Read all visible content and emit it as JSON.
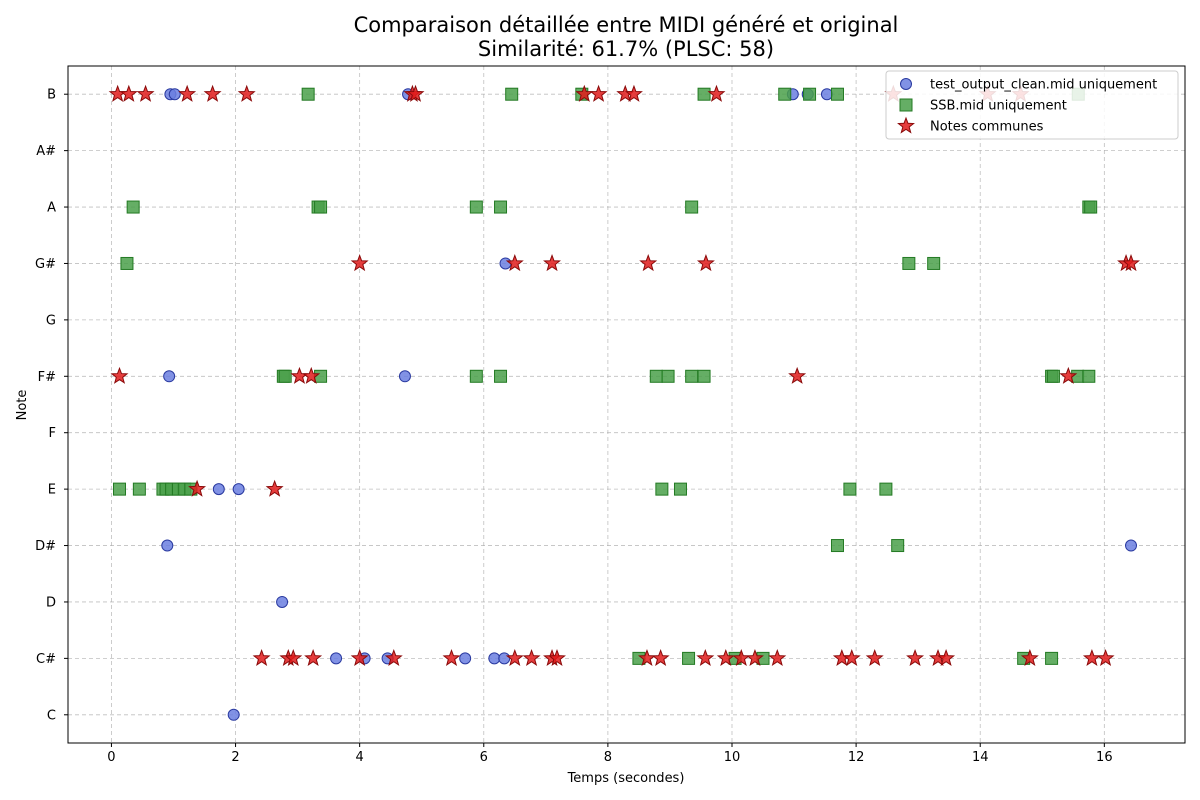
{
  "chart_data": {
    "type": "scatter",
    "title": "Comparaison détaillée entre MIDI généré et original",
    "subtitle": "Similarité: 61.7% (PLSC: 58)",
    "xlabel": "Temps (secondes)",
    "ylabel": "Note",
    "xlim": [
      -0.7,
      17.3
    ],
    "x_ticks": [
      0,
      2,
      4,
      6,
      8,
      10,
      12,
      14,
      16
    ],
    "y_categories": [
      "C",
      "C#",
      "D",
      "D#",
      "E",
      "F",
      "F#",
      "G",
      "G#",
      "A",
      "A#",
      "B"
    ],
    "grid": true,
    "legend_position": "top-right",
    "series": [
      {
        "name": "test_output_clean.mid uniquement",
        "marker": "circle",
        "color": "#6b7fe0",
        "edge_color": "#2a3aa0",
        "points": [
          {
            "x": 0.95,
            "note": "B"
          },
          {
            "x": 1.02,
            "note": "B"
          },
          {
            "x": 4.78,
            "note": "B"
          },
          {
            "x": 10.98,
            "note": "B"
          },
          {
            "x": 11.22,
            "note": "B"
          },
          {
            "x": 11.53,
            "note": "B"
          },
          {
            "x": 6.35,
            "note": "G#"
          },
          {
            "x": 0.93,
            "note": "F#"
          },
          {
            "x": 4.73,
            "note": "F#"
          },
          {
            "x": 1.73,
            "note": "E"
          },
          {
            "x": 2.05,
            "note": "E"
          },
          {
            "x": 0.9,
            "note": "D#"
          },
          {
            "x": 16.43,
            "note": "D#"
          },
          {
            "x": 2.75,
            "note": "D"
          },
          {
            "x": 3.62,
            "note": "C#"
          },
          {
            "x": 4.08,
            "note": "C#"
          },
          {
            "x": 4.45,
            "note": "C#"
          },
          {
            "x": 5.7,
            "note": "C#"
          },
          {
            "x": 6.17,
            "note": "C#"
          },
          {
            "x": 6.33,
            "note": "C#"
          },
          {
            "x": 1.97,
            "note": "C"
          }
        ]
      },
      {
        "name": "SSB.mid uniquement",
        "marker": "square",
        "color": "#4aa04a",
        "edge_color": "#237a23",
        "points": [
          {
            "x": 3.17,
            "note": "B"
          },
          {
            "x": 6.45,
            "note": "B"
          },
          {
            "x": 7.58,
            "note": "B"
          },
          {
            "x": 9.55,
            "note": "B"
          },
          {
            "x": 10.85,
            "note": "B"
          },
          {
            "x": 11.25,
            "note": "B"
          },
          {
            "x": 11.7,
            "note": "B"
          },
          {
            "x": 15.58,
            "note": "B"
          },
          {
            "x": 0.35,
            "note": "A"
          },
          {
            "x": 3.33,
            "note": "A"
          },
          {
            "x": 3.37,
            "note": "A"
          },
          {
            "x": 5.88,
            "note": "A"
          },
          {
            "x": 6.27,
            "note": "A"
          },
          {
            "x": 9.35,
            "note": "A"
          },
          {
            "x": 15.75,
            "note": "A"
          },
          {
            "x": 15.78,
            "note": "A"
          },
          {
            "x": 0.25,
            "note": "G#"
          },
          {
            "x": 12.85,
            "note": "G#"
          },
          {
            "x": 13.25,
            "note": "G#"
          },
          {
            "x": 2.77,
            "note": "F#"
          },
          {
            "x": 2.8,
            "note": "F#"
          },
          {
            "x": 3.37,
            "note": "F#"
          },
          {
            "x": 5.88,
            "note": "F#"
          },
          {
            "x": 6.27,
            "note": "F#"
          },
          {
            "x": 8.78,
            "note": "F#"
          },
          {
            "x": 8.97,
            "note": "F#"
          },
          {
            "x": 9.35,
            "note": "F#"
          },
          {
            "x": 9.55,
            "note": "F#"
          },
          {
            "x": 15.15,
            "note": "F#"
          },
          {
            "x": 15.18,
            "note": "F#"
          },
          {
            "x": 15.57,
            "note": "F#"
          },
          {
            "x": 15.75,
            "note": "F#"
          },
          {
            "x": 0.13,
            "note": "E"
          },
          {
            "x": 0.45,
            "note": "E"
          },
          {
            "x": 0.83,
            "note": "E"
          },
          {
            "x": 0.88,
            "note": "E"
          },
          {
            "x": 0.97,
            "note": "E"
          },
          {
            "x": 1.08,
            "note": "E"
          },
          {
            "x": 1.18,
            "note": "E"
          },
          {
            "x": 1.28,
            "note": "E"
          },
          {
            "x": 8.87,
            "note": "E"
          },
          {
            "x": 9.17,
            "note": "E"
          },
          {
            "x": 11.9,
            "note": "E"
          },
          {
            "x": 12.48,
            "note": "E"
          },
          {
            "x": 11.7,
            "note": "D#"
          },
          {
            "x": 12.67,
            "note": "D#"
          },
          {
            "x": 8.5,
            "note": "C#"
          },
          {
            "x": 9.3,
            "note": "C#"
          },
          {
            "x": 10.05,
            "note": "C#"
          },
          {
            "x": 10.5,
            "note": "C#"
          },
          {
            "x": 14.7,
            "note": "C#"
          },
          {
            "x": 15.15,
            "note": "C#"
          }
        ]
      },
      {
        "name": "Notes communes",
        "marker": "star",
        "color": "#e01b1b",
        "edge_color": "#8a0a0a",
        "points": [
          {
            "x": 0.1,
            "note": "B"
          },
          {
            "x": 0.28,
            "note": "B"
          },
          {
            "x": 0.55,
            "note": "B"
          },
          {
            "x": 1.22,
            "note": "B"
          },
          {
            "x": 1.63,
            "note": "B"
          },
          {
            "x": 2.18,
            "note": "B"
          },
          {
            "x": 4.85,
            "note": "B"
          },
          {
            "x": 4.9,
            "note": "B"
          },
          {
            "x": 7.62,
            "note": "B"
          },
          {
            "x": 7.85,
            "note": "B"
          },
          {
            "x": 8.28,
            "note": "B"
          },
          {
            "x": 8.42,
            "note": "B"
          },
          {
            "x": 9.75,
            "note": "B"
          },
          {
            "x": 12.6,
            "note": "B"
          },
          {
            "x": 14.12,
            "note": "B"
          },
          {
            "x": 14.65,
            "note": "B"
          },
          {
            "x": 4.0,
            "note": "G#"
          },
          {
            "x": 6.5,
            "note": "G#"
          },
          {
            "x": 7.1,
            "note": "G#"
          },
          {
            "x": 8.65,
            "note": "G#"
          },
          {
            "x": 9.58,
            "note": "G#"
          },
          {
            "x": 16.35,
            "note": "G#"
          },
          {
            "x": 16.43,
            "note": "G#"
          },
          {
            "x": 0.13,
            "note": "F#"
          },
          {
            "x": 3.03,
            "note": "F#"
          },
          {
            "x": 3.22,
            "note": "F#"
          },
          {
            "x": 11.05,
            "note": "F#"
          },
          {
            "x": 15.42,
            "note": "F#"
          },
          {
            "x": 1.38,
            "note": "E"
          },
          {
            "x": 2.63,
            "note": "E"
          },
          {
            "x": 2.42,
            "note": "C#"
          },
          {
            "x": 2.85,
            "note": "C#"
          },
          {
            "x": 2.93,
            "note": "C#"
          },
          {
            "x": 3.25,
            "note": "C#"
          },
          {
            "x": 4.0,
            "note": "C#"
          },
          {
            "x": 4.55,
            "note": "C#"
          },
          {
            "x": 5.48,
            "note": "C#"
          },
          {
            "x": 6.5,
            "note": "C#"
          },
          {
            "x": 6.77,
            "note": "C#"
          },
          {
            "x": 7.1,
            "note": "C#"
          },
          {
            "x": 7.18,
            "note": "C#"
          },
          {
            "x": 8.63,
            "note": "C#"
          },
          {
            "x": 8.85,
            "note": "C#"
          },
          {
            "x": 9.57,
            "note": "C#"
          },
          {
            "x": 9.9,
            "note": "C#"
          },
          {
            "x": 10.15,
            "note": "C#"
          },
          {
            "x": 10.37,
            "note": "C#"
          },
          {
            "x": 10.73,
            "note": "C#"
          },
          {
            "x": 11.77,
            "note": "C#"
          },
          {
            "x": 11.93,
            "note": "C#"
          },
          {
            "x": 12.3,
            "note": "C#"
          },
          {
            "x": 12.95,
            "note": "C#"
          },
          {
            "x": 13.32,
            "note": "C#"
          },
          {
            "x": 13.45,
            "note": "C#"
          },
          {
            "x": 14.8,
            "note": "C#"
          },
          {
            "x": 15.8,
            "note": "C#"
          },
          {
            "x": 16.02,
            "note": "C#"
          }
        ]
      }
    ]
  }
}
